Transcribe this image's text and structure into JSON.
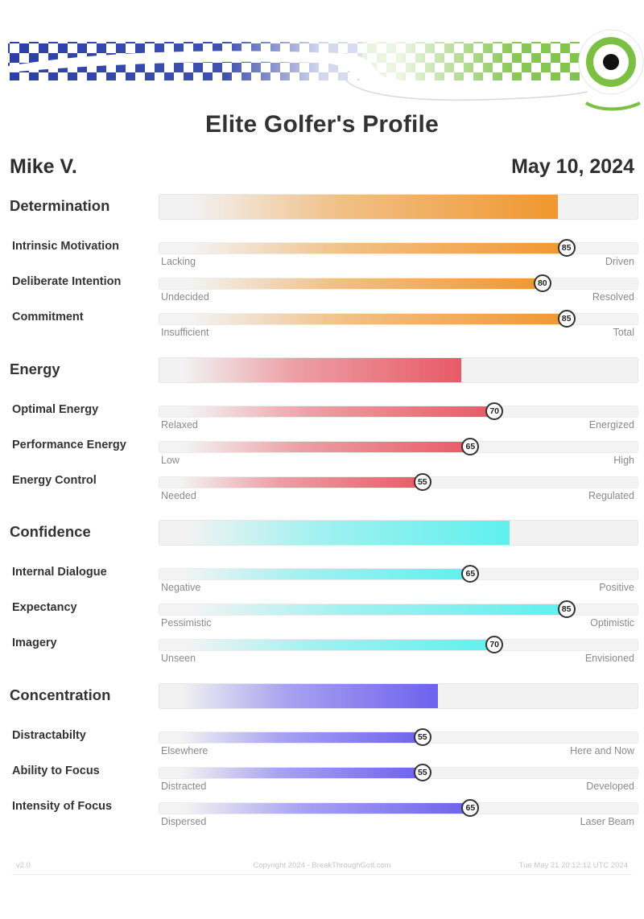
{
  "report": {
    "title": "Elite Golfer's Profile",
    "golfer": "Mike V.",
    "date": "May 10, 2024"
  },
  "colors": {
    "Determination": "#f0972f",
    "Energy": "#e85a66",
    "Confidence": "#5ff0ee",
    "Concentration": "#6d62ee",
    "brand_blue": "#2a3ea6",
    "brand_green": "#7bc043"
  },
  "categories": [
    {
      "name": "Determination",
      "score_percent": 83,
      "items": [
        {
          "label": "Intrinsic Motivation",
          "value": 85,
          "low": "Lacking",
          "high": "Driven"
        },
        {
          "label": "Deliberate Intention",
          "value": 80,
          "low": "Undecided",
          "high": "Resolved"
        },
        {
          "label": "Commitment",
          "value": 85,
          "low": "Insufficient",
          "high": "Total"
        }
      ]
    },
    {
      "name": "Energy",
      "score_percent": 63,
      "items": [
        {
          "label": "Optimal Energy",
          "value": 70,
          "low": "Relaxed",
          "high": "Energized"
        },
        {
          "label": "Performance Energy",
          "value": 65,
          "low": "Low",
          "high": "High"
        },
        {
          "label": "Energy Control",
          "value": 55,
          "low": "Needed",
          "high": "Regulated"
        }
      ]
    },
    {
      "name": "Confidence",
      "score_percent": 73,
      "items": [
        {
          "label": "Internal Dialogue",
          "value": 65,
          "low": "Negative",
          "high": "Positive"
        },
        {
          "label": "Expectancy",
          "value": 85,
          "low": "Pessimistic",
          "high": "Optimistic"
        },
        {
          "label": "Imagery",
          "value": 70,
          "low": "Unseen",
          "high": "Envisioned"
        }
      ]
    },
    {
      "name": "Concentration",
      "score_percent": 58,
      "items": [
        {
          "label": "Distractabilty",
          "value": 55,
          "low": "Elsewhere",
          "high": "Here and Now"
        },
        {
          "label": "Ability to Focus",
          "value": 55,
          "low": "Distracted",
          "high": "Developed"
        },
        {
          "label": "Intensity of Focus",
          "value": 65,
          "low": "Dispersed",
          "high": "Laser Beam"
        }
      ]
    }
  ],
  "footer": {
    "version": "v2.0",
    "copyright": "Copyright 2024 - BreakThroughGolf.com",
    "timestamp": "Tue May 21 20:12:12 UTC 2024"
  }
}
